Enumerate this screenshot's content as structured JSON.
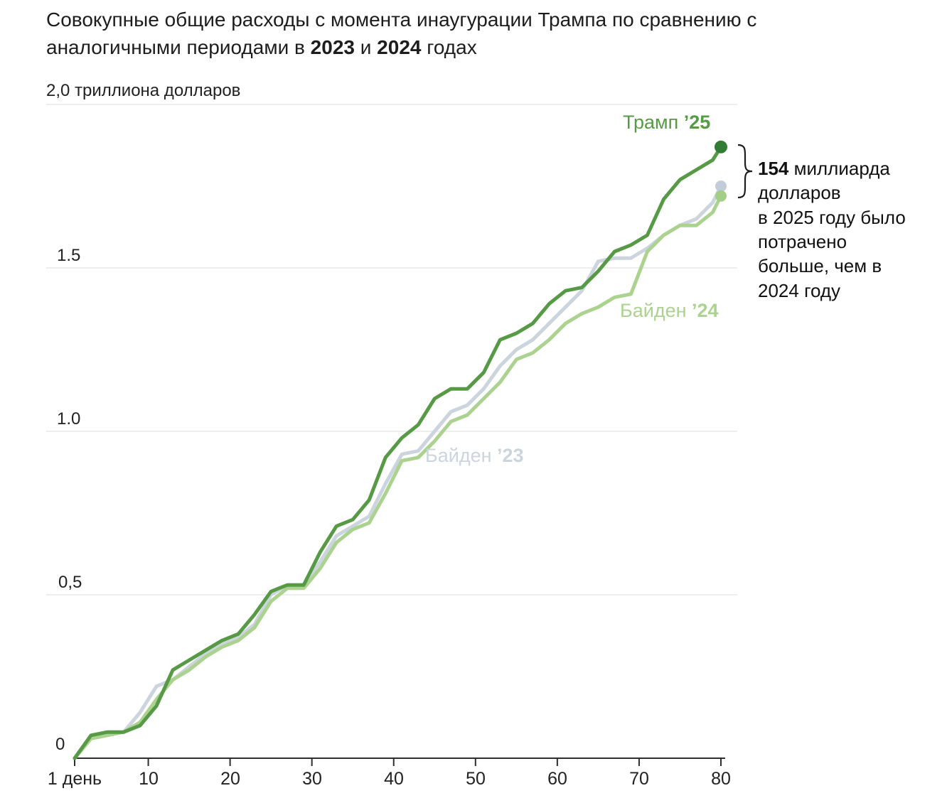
{
  "title": {
    "part1": "Совокупные общие расходы с момента инаугурации Трампа по сравнению с аналогичными периодами в ",
    "year1": "2023",
    "part2": " и ",
    "year2": "2024",
    "part3": " годах"
  },
  "colors": {
    "grid": "#dedede",
    "axis": "#2e2e2e",
    "text": "#1d1d1d",
    "background": "#ffffff"
  },
  "chart_data": {
    "type": "line",
    "title": "Совокупные общие расходы с момента инаугурации Трампа по сравнению с аналогичными периодами в 2023 и 2024 годах",
    "y_unit": "триллионы долларов",
    "ylim": [
      0,
      2.0
    ],
    "xlim": [
      1,
      80
    ],
    "grid": "horizontal",
    "y_ticks": [
      {
        "value": 2.0,
        "label": "2,0 триллиона долларов"
      },
      {
        "value": 1.5,
        "label": "1.5"
      },
      {
        "value": 1.0,
        "label": "1.0"
      },
      {
        "value": 0.5,
        "label": "0,5"
      },
      {
        "value": 0,
        "label": "0"
      }
    ],
    "x_ticks": [
      {
        "day": 1,
        "label": "1 день"
      },
      {
        "day": 10,
        "label": "10"
      },
      {
        "day": 20,
        "label": "20"
      },
      {
        "day": 30,
        "label": "30"
      },
      {
        "day": 40,
        "label": "40"
      },
      {
        "day": 50,
        "label": "50"
      },
      {
        "day": 60,
        "label": "60"
      },
      {
        "day": 70,
        "label": "70"
      },
      {
        "day": 80,
        "label": "80"
      }
    ],
    "x": [
      1,
      3,
      5,
      7,
      9,
      11,
      13,
      15,
      17,
      19,
      21,
      23,
      25,
      27,
      29,
      31,
      33,
      35,
      37,
      39,
      41,
      43,
      45,
      47,
      49,
      51,
      53,
      55,
      57,
      59,
      61,
      63,
      65,
      67,
      69,
      71,
      73,
      75,
      77,
      79,
      80
    ],
    "series": [
      {
        "key": "trump25",
        "name": "Трамп",
        "year": "’25",
        "color": "#579a45",
        "dot_color": "#317d33",
        "final_value_trillions": 1.87,
        "values": [
          0.0,
          0.07,
          0.08,
          0.08,
          0.1,
          0.16,
          0.27,
          0.3,
          0.33,
          0.36,
          0.38,
          0.44,
          0.51,
          0.53,
          0.53,
          0.63,
          0.71,
          0.73,
          0.79,
          0.92,
          0.98,
          1.02,
          1.1,
          1.13,
          1.13,
          1.18,
          1.28,
          1.3,
          1.33,
          1.39,
          1.43,
          1.44,
          1.49,
          1.55,
          1.57,
          1.6,
          1.71,
          1.77,
          1.8,
          1.83,
          1.87
        ]
      },
      {
        "key": "biden23",
        "name": "Байден",
        "year": "’23",
        "color": "#ccd4dd",
        "dot_color": "#c4ccd9",
        "final_value_trillions": 1.75,
        "values": [
          0.0,
          0.06,
          0.08,
          0.08,
          0.14,
          0.22,
          0.24,
          0.28,
          0.32,
          0.35,
          0.37,
          0.41,
          0.5,
          0.53,
          0.53,
          0.6,
          0.68,
          0.71,
          0.74,
          0.84,
          0.93,
          0.94,
          1.0,
          1.06,
          1.08,
          1.13,
          1.2,
          1.25,
          1.28,
          1.33,
          1.38,
          1.43,
          1.52,
          1.53,
          1.53,
          1.56,
          1.6,
          1.63,
          1.65,
          1.7,
          1.75
        ]
      },
      {
        "key": "biden24",
        "name": "Байден",
        "year": "’24",
        "color": "#abd38f",
        "dot_color": "#a3ce87",
        "final_value_trillions": 1.72,
        "values": [
          0.0,
          0.06,
          0.07,
          0.08,
          0.11,
          0.18,
          0.24,
          0.27,
          0.31,
          0.34,
          0.36,
          0.4,
          0.48,
          0.52,
          0.52,
          0.58,
          0.66,
          0.7,
          0.72,
          0.81,
          0.91,
          0.92,
          0.97,
          1.03,
          1.05,
          1.1,
          1.15,
          1.22,
          1.24,
          1.28,
          1.33,
          1.36,
          1.38,
          1.41,
          1.42,
          1.55,
          1.6,
          1.63,
          1.63,
          1.67,
          1.72
        ]
      }
    ],
    "annotation": {
      "bold": "154",
      "line1_rest": " миллиарда",
      "lines": [
        "долларов",
        "в 2025 году было",
        "потрачено",
        "больше, чем в",
        "2024 году"
      ]
    }
  }
}
